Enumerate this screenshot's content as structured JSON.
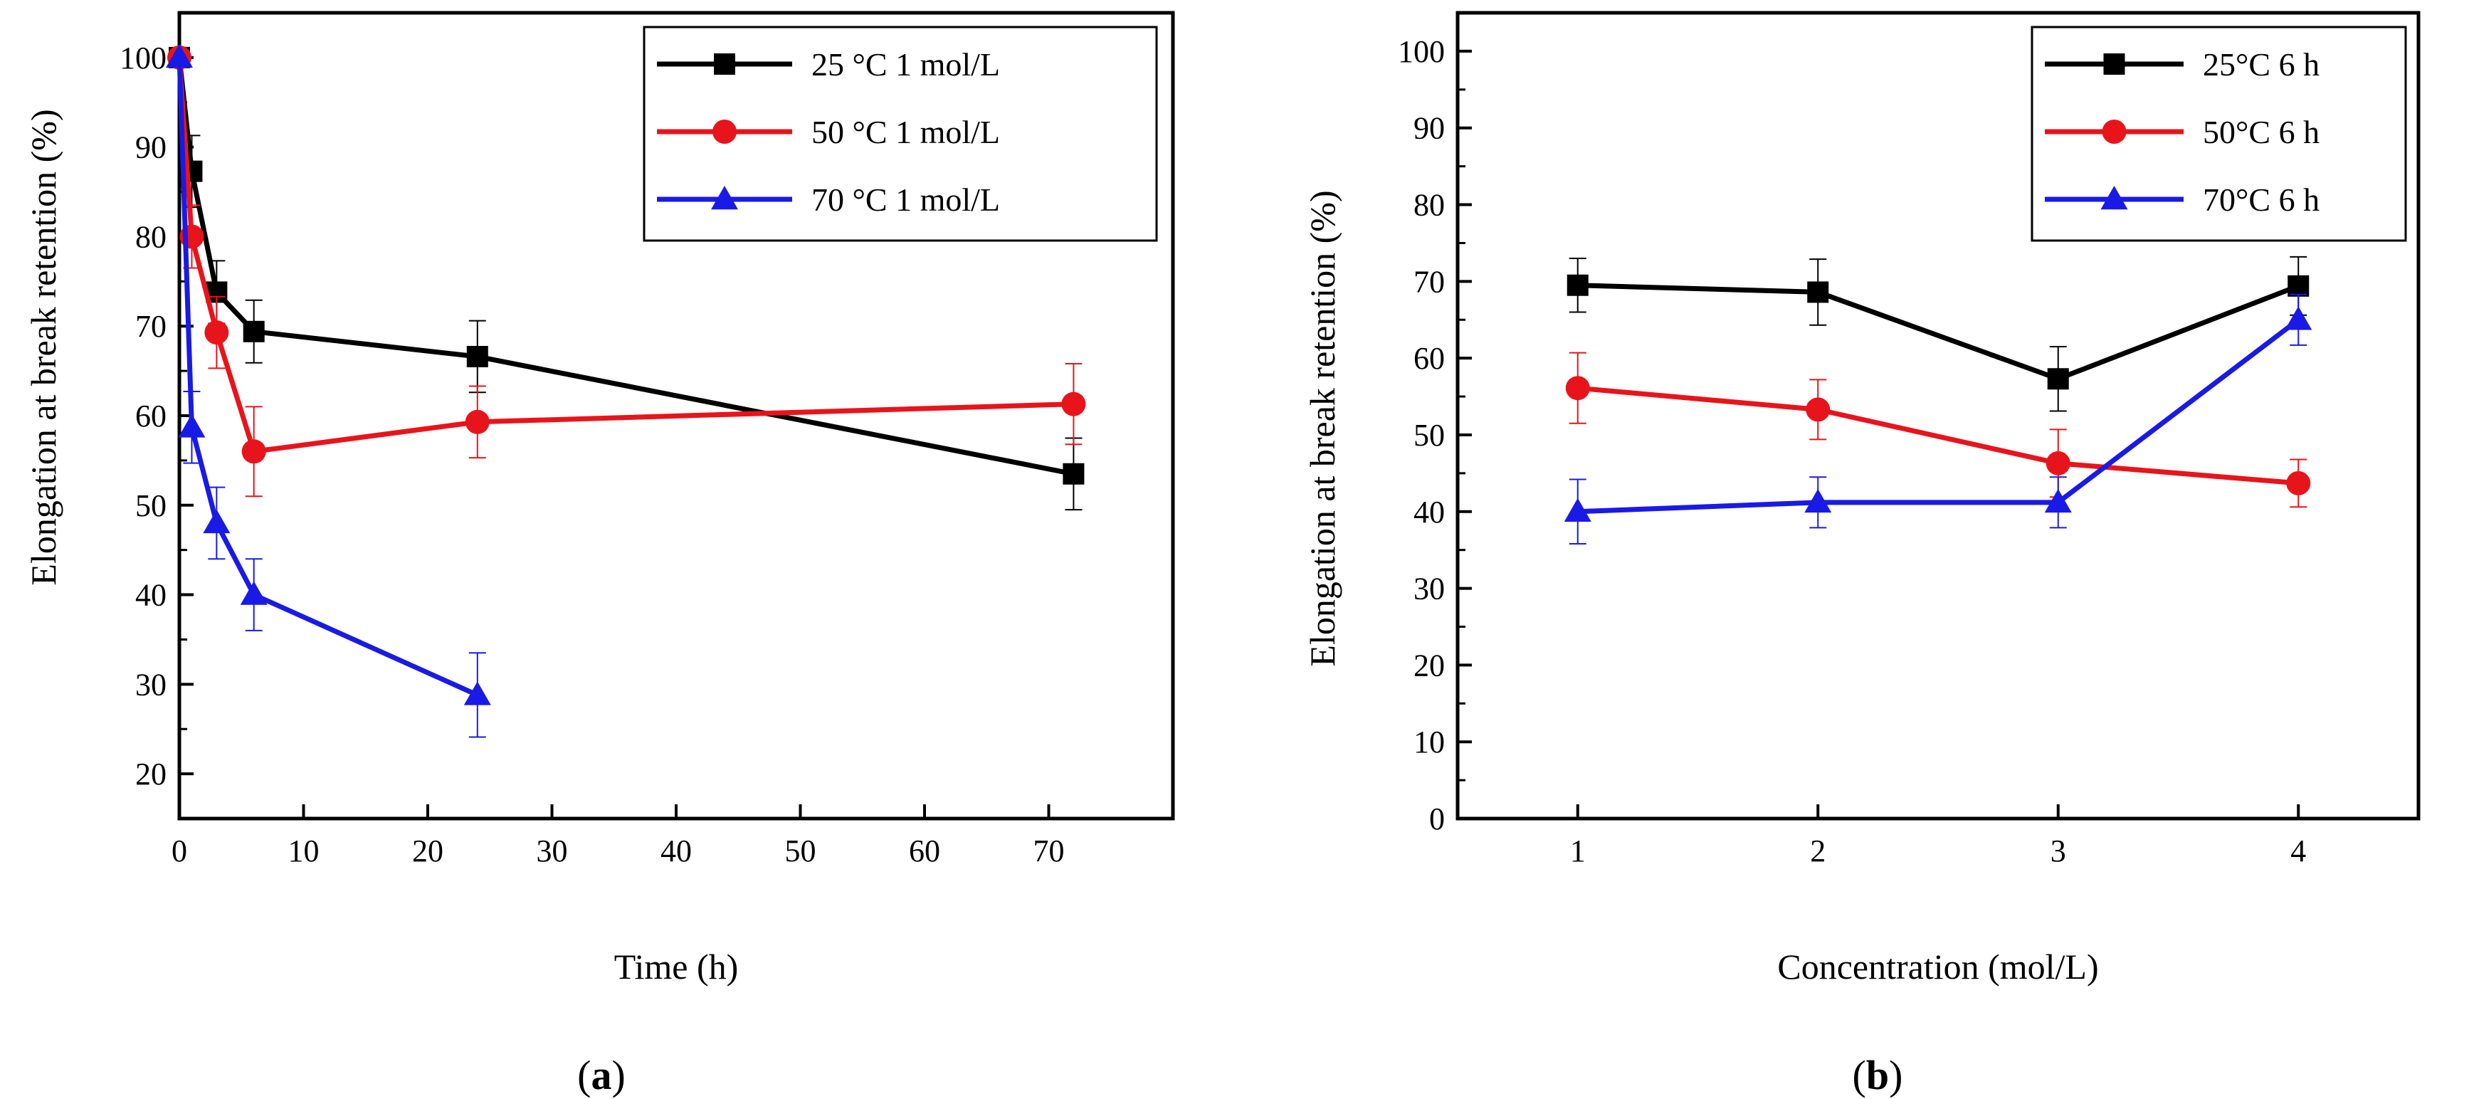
{
  "chart_data": [
    {
      "type": "line",
      "panel_label": {
        "open": "(",
        "letter": "a",
        "close": ")"
      },
      "xlabel": "Time (h)",
      "ylabel": "Elongation at break retention (%)",
      "xlim": [
        0,
        80
      ],
      "ylim": [
        15,
        105
      ],
      "xticks": [
        0,
        10,
        20,
        30,
        40,
        50,
        60,
        70
      ],
      "yticks": [
        20,
        30,
        40,
        50,
        60,
        70,
        80,
        90,
        100
      ],
      "legend_position": "top-right",
      "series": [
        {
          "name": "25 °C 1 mol/L",
          "color": "#000000",
          "marker": "square",
          "x": [
            0,
            1,
            3,
            6,
            24,
            72
          ],
          "y": [
            100,
            87.3,
            73.8,
            69.4,
            66.6,
            53.5
          ],
          "err": [
            0,
            4,
            3.5,
            3.5,
            4,
            4
          ]
        },
        {
          "name": "50 °C 1 mol/L",
          "color": "#e8141b",
          "marker": "circle",
          "x": [
            0,
            1,
            3,
            6,
            24,
            72
          ],
          "y": [
            100,
            80,
            69.3,
            56,
            59.3,
            61.3
          ],
          "err": [
            0,
            3.5,
            4,
            5,
            4,
            4.5
          ]
        },
        {
          "name": "70 °C 1 mol/L",
          "color": "#1a1ae6",
          "marker": "triangle",
          "x": [
            0,
            1,
            3,
            6,
            24
          ],
          "y": [
            100,
            58.7,
            48,
            40,
            28.8
          ],
          "err": [
            0,
            4,
            4,
            4,
            4.7
          ]
        }
      ]
    },
    {
      "type": "line",
      "panel_label": {
        "open": "(",
        "letter": "b",
        "close": ")"
      },
      "xlabel": "Concentration (mol/L)",
      "ylabel": "Elongation at break retention (%)",
      "xlim": [
        0.5,
        4.5
      ],
      "ylim": [
        0,
        105
      ],
      "xticks": [
        1,
        2,
        3,
        4
      ],
      "yticks": [
        0,
        10,
        20,
        30,
        40,
        50,
        60,
        70,
        80,
        90,
        100
      ],
      "legend_position": "top-right",
      "series": [
        {
          "name": "25°C 6 h",
          "color": "#000000",
          "marker": "square",
          "x": [
            1,
            2,
            3,
            4
          ],
          "y": [
            69.5,
            68.6,
            57.3,
            69.4
          ],
          "err": [
            3.5,
            4.3,
            4.2,
            3.8
          ]
        },
        {
          "name": "50°C 6 h",
          "color": "#e8141b",
          "marker": "circle",
          "x": [
            1,
            2,
            3,
            4
          ],
          "y": [
            56.1,
            53.3,
            46.3,
            43.7
          ],
          "err": [
            4.6,
            3.9,
            4.4,
            3.1
          ]
        },
        {
          "name": "70°C 6 h",
          "color": "#1a1ae6",
          "marker": "triangle",
          "x": [
            1,
            2,
            3,
            4
          ],
          "y": [
            40,
            41.2,
            41.2,
            65
          ],
          "err": [
            4.2,
            3.3,
            3.3,
            3.3
          ]
        }
      ]
    }
  ]
}
